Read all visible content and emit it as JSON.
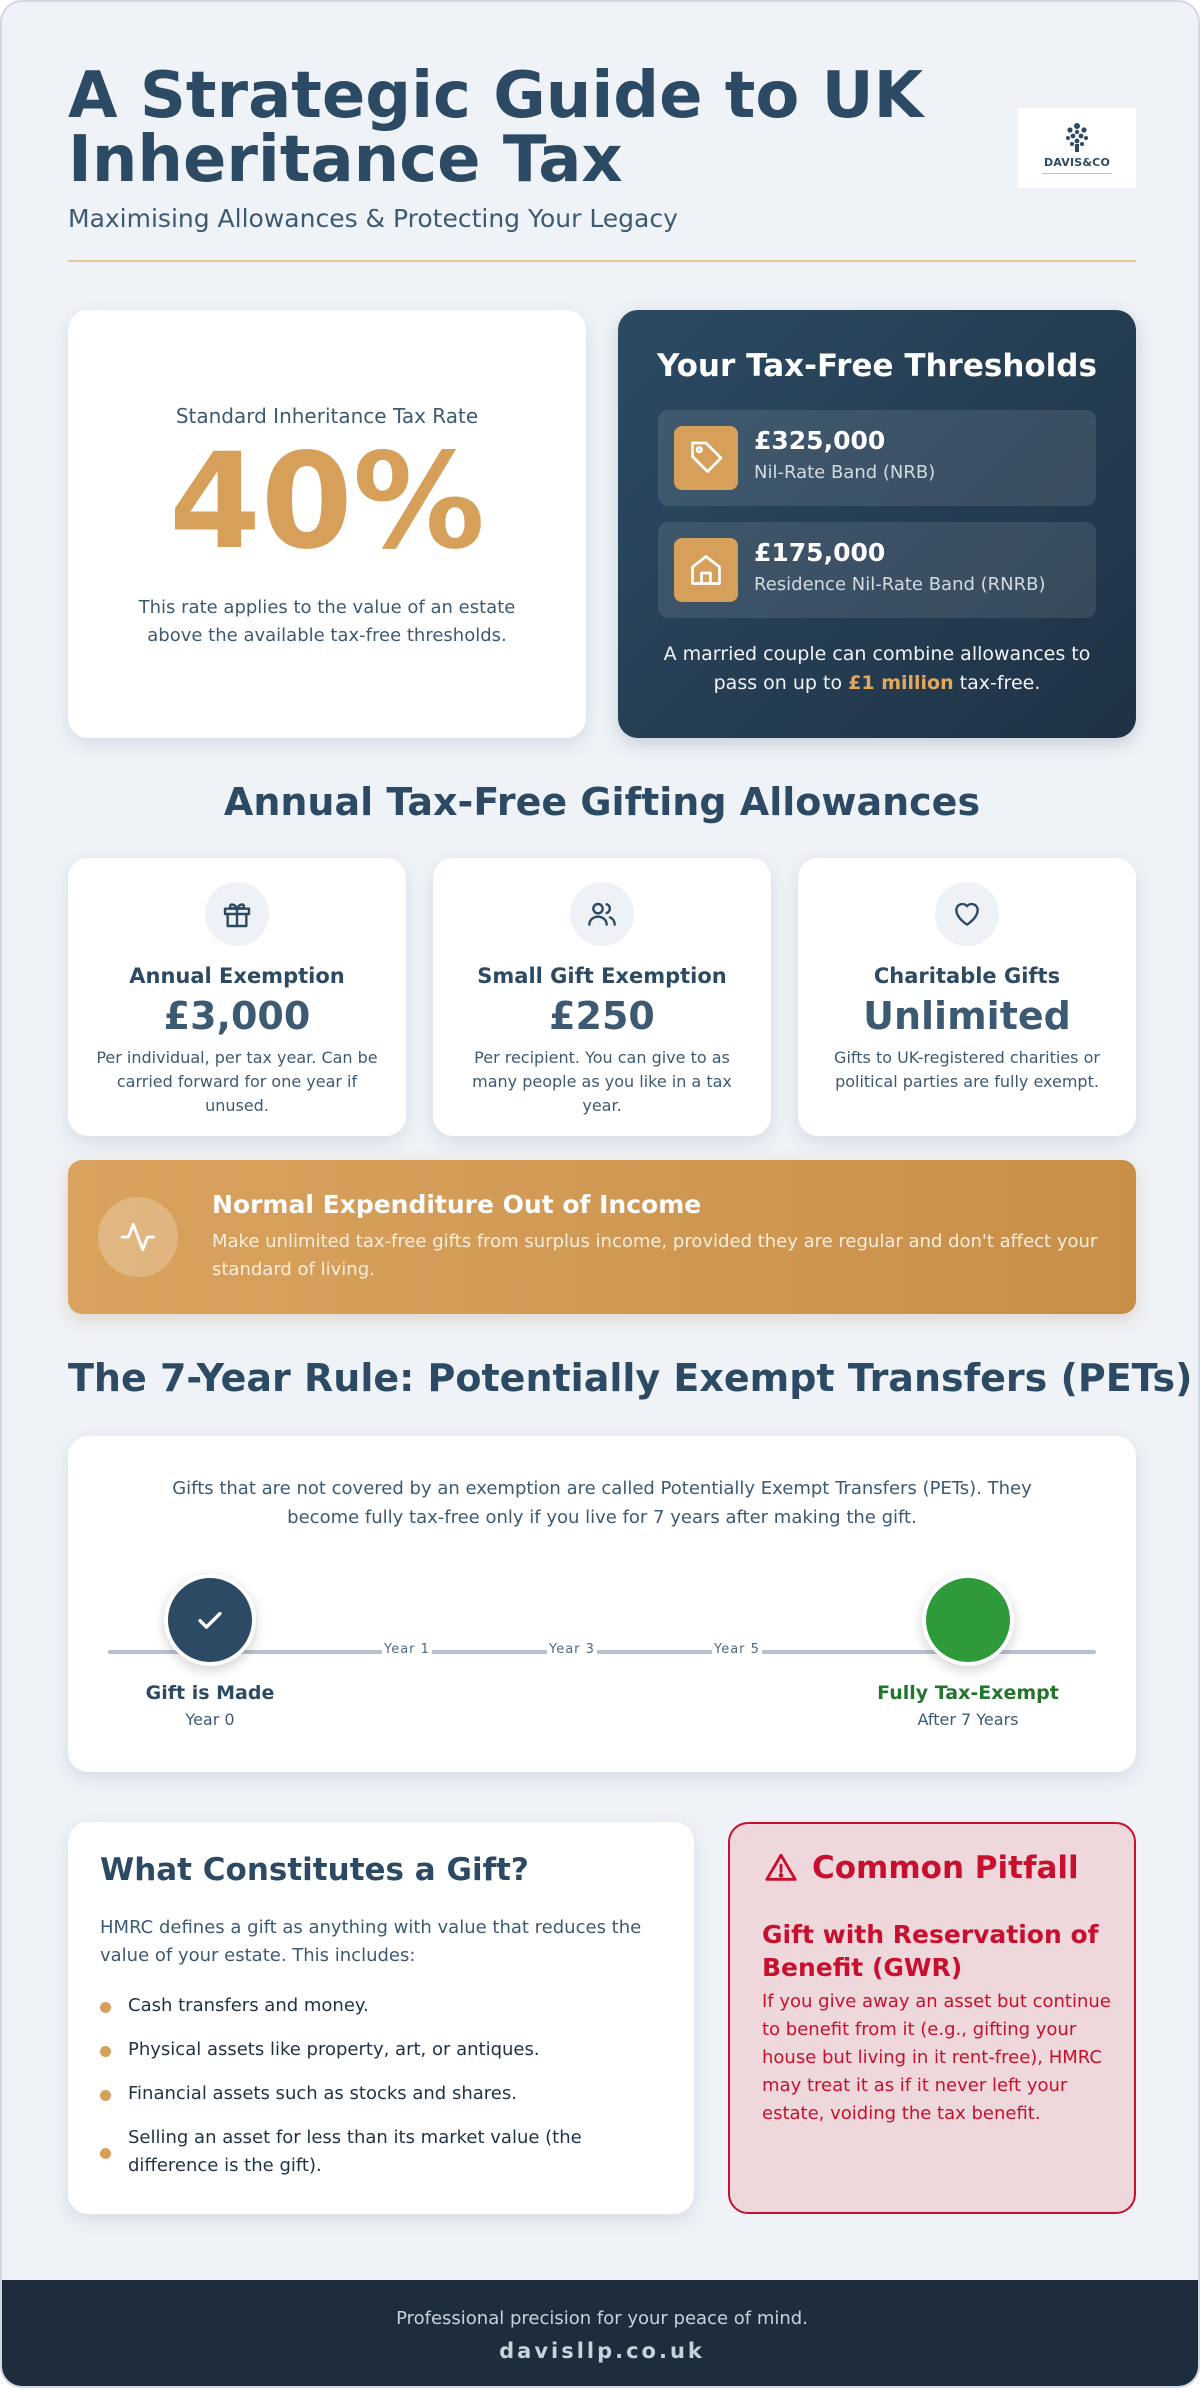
{
  "header": {
    "title": "A Strategic Guide to UK Inheritance Tax",
    "subtitle": "Maximising Allowances & Protecting Your Legacy",
    "logo_text": "DAVIS&CO"
  },
  "rate_card": {
    "label": "Standard Inheritance Tax Rate",
    "value": "40%",
    "description": "This rate applies to the value of an estate above the available tax-free thresholds."
  },
  "thresholds": {
    "title": "Your Tax-Free Thresholds",
    "items": [
      {
        "amount": "£325,000",
        "name": "Nil-Rate Band (NRB)",
        "icon": "tag-icon"
      },
      {
        "amount": "£175,000",
        "name": "Residence Nil-Rate Band (RNRB)",
        "icon": "house-icon"
      }
    ],
    "note_before": "A married couple can combine allowances to pass on up to ",
    "note_highlight": "£1 million",
    "note_after": " tax-free."
  },
  "gifting": {
    "heading": "Annual Tax-Free Gifting Allowances",
    "cards": [
      {
        "title": "Annual Exemption",
        "value": "£3,000",
        "description": "Per individual, per tax year. Can be carried forward for one year if unused.",
        "icon": "gift-icon"
      },
      {
        "title": "Small Gift Exemption",
        "value": "£250",
        "description": "Per recipient. You can give to as many people as you like in a tax year.",
        "icon": "users-icon"
      },
      {
        "title": "Charitable Gifts",
        "value": "Unlimited",
        "description": "Gifts to UK-registered charities or political parties are fully exempt.",
        "icon": "heart-icon"
      }
    ]
  },
  "banner": {
    "title": "Normal Expenditure Out of Income",
    "description": "Make unlimited tax-free gifts from surplus income, provided they are regular and don't affect your standard of living.",
    "icon": "activity-icon"
  },
  "seven_year": {
    "heading": "The 7-Year Rule: Potentially Exempt Transfers (PETs)",
    "intro": "Gifts that are not covered by an exemption are called Potentially Exempt Transfers (PETs). They become fully tax-free only if you live for 7 years after making the gift.",
    "ticks": [
      "Year 1",
      "Year 3",
      "Year 5"
    ],
    "start_label": "Gift is Made",
    "start_sub": "Year 0",
    "end_label": "Fully Tax-Exempt",
    "end_sub": "After 7 Years"
  },
  "what_gift": {
    "title": "What Constitutes a Gift?",
    "intro": "HMRC defines a gift as anything with value that reduces the value of your estate. This includes:",
    "items": [
      "Cash transfers and money.",
      "Physical assets like property, art, or antiques.",
      "Financial assets such as stocks and shares.",
      "Selling an asset for less than its market value (the difference is the gift)."
    ]
  },
  "pitfall": {
    "title": "Common Pitfall",
    "subtitle": "Gift with Reservation of Benefit (GWR)",
    "description": "If you give away an asset but continue to benefit from it (e.g., gifting your house but living in it rent-free), HMRC may treat it as if it never left your estate, voiding the tax benefit."
  },
  "footer": {
    "tagline": "Professional precision for your peace of mind.",
    "url": "davisllp.co.uk"
  },
  "colors": {
    "navy": "#2c4a63",
    "gold": "#d6a05a",
    "green": "#2e9a3a",
    "red": "#c8102e"
  }
}
